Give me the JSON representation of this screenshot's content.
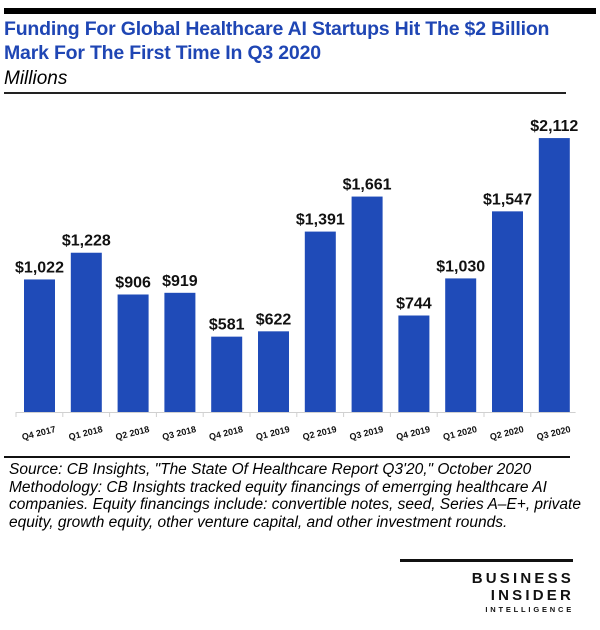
{
  "chart_data": {
    "type": "bar",
    "title": "Funding For Global Healthcare AI Startups Hit The $2 Billion Mark For The First Time In Q3 2020",
    "subtitle": "Millions",
    "xlabel": "",
    "ylabel": "Millions",
    "categories": [
      "Q4 2017",
      "Q1 2018",
      "Q2 2018",
      "Q3 2018",
      "Q4 2018",
      "Q1 2019",
      "Q2 2019",
      "Q3 2019",
      "Q4 2019",
      "Q1 2020",
      "Q2 2020",
      "Q3 2020"
    ],
    "values": [
      1022,
      1228,
      906,
      919,
      581,
      622,
      1391,
      1661,
      744,
      1030,
      1547,
      2112
    ],
    "data_labels": [
      "$1,022",
      "$1,228",
      "$906",
      "$919",
      "$581",
      "$622",
      "$1,391",
      "$1,661",
      "$744",
      "$1,030",
      "$1,547",
      "$2,112"
    ],
    "ylim": [
      0,
      2112
    ],
    "grid": false,
    "legend": "none",
    "bar_color": "#1f4bb8"
  },
  "header": {
    "title": "Funding For Global Healthcare AI Startups Hit The $2 Billion Mark For The First Time In Q3 2020",
    "subtitle": "Millions"
  },
  "footer": {
    "source": "Source: CB Insights, \"The State Of Healthcare Report Q3'20,\" October 2020",
    "methodology": "Methodology: CB Insights tracked equity financings of emerrging healthcare AI companies. Equity financings include: convertible notes, seed, Series A–E+, private equity, growth equity, other venture capital, and other investment rounds."
  },
  "logo": {
    "line1": "BUSINESS",
    "line2": "INSIDER",
    "line3": "INTELLIGENCE"
  }
}
